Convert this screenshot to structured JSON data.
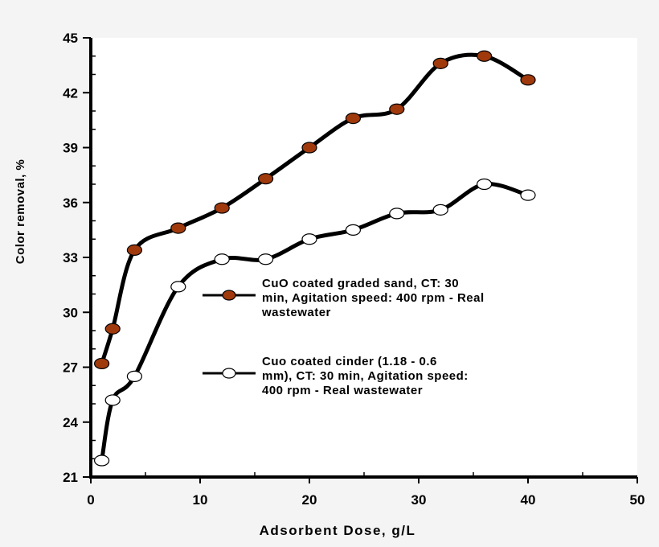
{
  "chart_data": {
    "type": "line",
    "title": "",
    "xlabel": "Adsorbent Dose, g/L",
    "ylabel": "Color removal, %",
    "xlim": [
      0,
      50
    ],
    "ylim": [
      21,
      45
    ],
    "xticks": [
      0,
      10,
      20,
      30,
      40,
      50
    ],
    "yticks": [
      21,
      24,
      27,
      30,
      33,
      36,
      39,
      42,
      45
    ],
    "grid": false,
    "legend_placement": "center-right",
    "series": [
      {
        "name": "CuO coated graded sand, CT: 30 min, Agitation speed: 400 rpm - Real wastewater",
        "legend_lines": [
          "CuO coated graded sand, CT: 30",
          "min, Agitation speed: 400 rpm - Real",
          "wastewater"
        ],
        "marker": "filled-circle",
        "color": "#a03a0c",
        "x": [
          1,
          2,
          4,
          8,
          12,
          16,
          20,
          24,
          28,
          32,
          36,
          40
        ],
        "y": [
          27.2,
          29.1,
          33.4,
          34.6,
          35.7,
          37.3,
          39.0,
          40.6,
          41.1,
          43.6,
          44.0,
          42.7
        ]
      },
      {
        "name": "Cuo coated cinder (1.18 - 0.6 mm), CT: 30 min, Agitation speed: 400 rpm - Real wastewater",
        "legend_lines": [
          "Cuo coated cinder (1.18 - 0.6",
          "mm), CT: 30 min, Agitation speed:",
          "400 rpm - Real wastewater"
        ],
        "marker": "open-circle",
        "color": "#ffffff",
        "x": [
          1,
          2,
          4,
          8,
          12,
          16,
          20,
          24,
          28,
          32,
          36,
          40
        ],
        "y": [
          21.9,
          25.2,
          26.5,
          31.4,
          32.9,
          32.9,
          34.0,
          34.5,
          35.4,
          35.6,
          37.0,
          36.4
        ]
      }
    ]
  }
}
